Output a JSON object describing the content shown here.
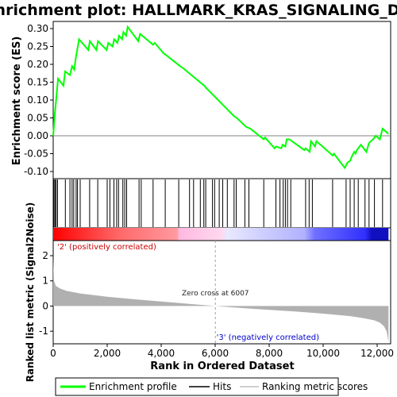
{
  "chart_data": {
    "type": "line",
    "title": "Enrichment plot: HALLMARK_KRAS_SIGNALING_DN",
    "es_panel": {
      "ylabel": "Enrichment score (ES)",
      "ylim": [
        -0.12,
        0.32
      ],
      "yticks": [
        -0.1,
        -0.05,
        0.0,
        0.05,
        0.1,
        0.15,
        0.2,
        0.25,
        0.3
      ],
      "ytick_labels": [
        "-0.10",
        "-0.05",
        "0.00",
        "0.05",
        "0.10",
        "0.15",
        "0.20",
        "0.25",
        "0.30"
      ],
      "series": [
        {
          "name": "Enrichment profile",
          "color": "#00ff00",
          "x": [
            0,
            60,
            120,
            180,
            380,
            440,
            620,
            700,
            780,
            840,
            900,
            960,
            1300,
            1360,
            1600,
            1660,
            1980,
            2040,
            2200,
            2260,
            2380,
            2440,
            2550,
            2600,
            2700,
            2760,
            3150,
            3220,
            3300,
            3700,
            3760,
            4100,
            4200,
            4700,
            4800,
            5600,
            5650,
            6700,
            6800,
            7150,
            7300,
            7800,
            7850,
            8200,
            8250,
            8450,
            8500,
            8600,
            8650,
            8750,
            9300,
            9350,
            9500,
            9550,
            9700,
            9750,
            10350,
            10400,
            10800,
            10900,
            11000,
            11050,
            11150,
            11200,
            11250,
            11400,
            11600,
            11700,
            11850,
            11950,
            12100,
            12200,
            12420
          ],
          "y": [
            0.0,
            0.06,
            0.11,
            0.16,
            0.14,
            0.18,
            0.17,
            0.195,
            0.185,
            0.22,
            0.245,
            0.27,
            0.24,
            0.265,
            0.24,
            0.265,
            0.24,
            0.26,
            0.25,
            0.27,
            0.26,
            0.28,
            0.27,
            0.29,
            0.28,
            0.305,
            0.265,
            0.285,
            0.28,
            0.255,
            0.26,
            0.23,
            0.225,
            0.195,
            0.19,
            0.14,
            0.135,
            0.055,
            0.05,
            0.025,
            0.02,
            -0.01,
            -0.005,
            -0.035,
            -0.03,
            -0.035,
            -0.025,
            -0.03,
            -0.01,
            -0.01,
            -0.04,
            -0.035,
            -0.045,
            -0.015,
            -0.03,
            -0.015,
            -0.055,
            -0.05,
            -0.09,
            -0.075,
            -0.07,
            -0.06,
            -0.045,
            -0.05,
            -0.04,
            -0.025,
            -0.045,
            -0.02,
            -0.01,
            0.0,
            -0.01,
            0.02,
            0.005
          ]
        }
      ]
    },
    "hits": [
      30,
      70,
      110,
      160,
      450,
      620,
      700,
      760,
      850,
      900,
      1000,
      1350,
      1650,
      2000,
      2100,
      2250,
      2350,
      2420,
      2580,
      2650,
      2720,
      3180,
      3260,
      3700,
      4150,
      4650,
      5050,
      5200,
      5450,
      5580,
      5650,
      5900,
      5980,
      6150,
      6280,
      6450,
      6700,
      6780,
      7100,
      7250,
      7800,
      8250,
      8400,
      8520,
      8600,
      8680,
      8800,
      9350,
      9480,
      9600,
      10350,
      10850,
      11000,
      11150,
      11300,
      11550,
      11700,
      11900,
      12200
    ],
    "rank_panel": {
      "ylabel": "Ranked list metric (Signal2Noise)",
      "xlabel": "Rank in Ordered Dataset",
      "xlim": [
        0,
        12500
      ],
      "xticks": [
        0,
        2000,
        4000,
        6000,
        8000,
        10000,
        12000
      ],
      "xtick_labels": [
        "0",
        "2,000",
        "4,000",
        "6,000",
        "8,000",
        "10,000",
        "12,000"
      ],
      "ylim": [
        -1.5,
        2.6
      ],
      "yticks": [
        -1,
        0,
        1,
        2
      ],
      "ytick_labels": [
        "-1",
        "0",
        "1",
        "2"
      ],
      "metric_profile": {
        "x": [
          0,
          30,
          100,
          250,
          500,
          1000,
          2000,
          3000,
          4000,
          5000,
          6007,
          7000,
          8000,
          9000,
          10000,
          11000,
          11500,
          11900,
          12100,
          12250,
          12350,
          12400,
          12420
        ],
        "y": [
          1.9,
          1.0,
          0.8,
          0.7,
          0.6,
          0.5,
          0.37,
          0.27,
          0.18,
          0.09,
          0.0,
          -0.08,
          -0.15,
          -0.22,
          -0.3,
          -0.4,
          -0.48,
          -0.57,
          -0.66,
          -0.8,
          -1.0,
          -1.3,
          -1.45
        ]
      },
      "zero_cross_rank": 6007,
      "zero_cross_text": "Zero cross at 6007",
      "pos_label": "'2' (positively correlated)",
      "neg_label": "'3' (negatively correlated)",
      "n_genes": 12420
    },
    "legend": {
      "placement": "bottom",
      "entries": [
        {
          "label": "Enrichment profile",
          "color": "#00ff00"
        },
        {
          "label": "Hits",
          "color": "#000000"
        },
        {
          "label": "Ranking metric scores",
          "color": "#c0c0c0"
        }
      ]
    },
    "colors": {
      "profile": "#00ff00",
      "hit": "#000000",
      "metric_fill": "#b0b0b0",
      "pos_strong": "#ff0000",
      "pos_light": "#ffb0d8",
      "neg_light": "#c8c8ff",
      "neg_strong": "#0000ff"
    }
  }
}
